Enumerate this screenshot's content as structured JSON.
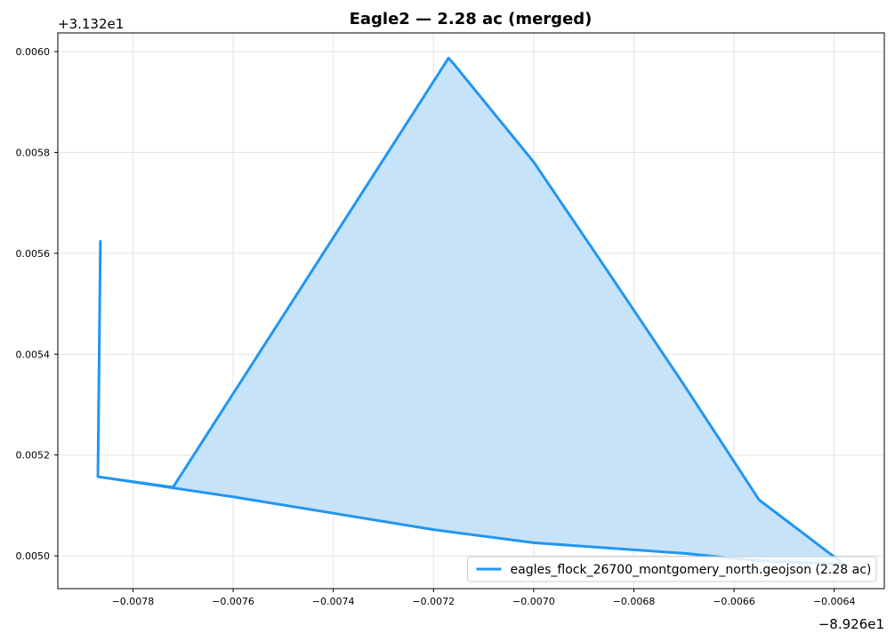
{
  "chart_data": {
    "type": "area",
    "title": "Eagle2 — 2.28 ac (merged)",
    "xlabel": "",
    "ylabel": "",
    "x_offset_label": "−8.926e1",
    "y_offset_label": "+3.132e1",
    "xlim": [
      -0.00795,
      -0.0063
    ],
    "ylim": [
      0.004935,
      0.006037
    ],
    "x_ticks": [
      -0.0078,
      -0.0076,
      -0.0074,
      -0.0072,
      -0.007,
      -0.0068,
      -0.0066,
      -0.0064
    ],
    "x_tick_labels": [
      "−0.0078",
      "−0.0076",
      "−0.0074",
      "−0.0072",
      "−0.0070",
      "−0.0068",
      "−0.0066",
      "−0.0064"
    ],
    "y_ticks": [
      0.005,
      0.0052,
      0.0054,
      0.0056,
      0.0058,
      0.006
    ],
    "y_tick_labels": [
      "0.0050",
      "0.0052",
      "0.0054",
      "0.0056",
      "0.0058",
      "0.0060"
    ],
    "grid": true,
    "legend_position": "lower-right",
    "series": [
      {
        "name": "eagles_flock_26700_montgomery_north.geojson (2.28 ac)",
        "color": "#2196f3",
        "fill_color": "#c6e3f9",
        "x": [
          -0.007865,
          -0.00787,
          -0.00772,
          -0.00717,
          -0.00716,
          -0.007,
          -0.00685,
          -0.0067,
          -0.00655,
          -0.00638,
          -0.00655,
          -0.0067,
          -0.007,
          -0.0072,
          -0.0076,
          -0.00787,
          -0.007865
        ],
        "y": [
          0.005626,
          0.005157,
          0.005136,
          0.005987,
          0.005976,
          0.005781,
          0.005561,
          0.005339,
          0.005111,
          0.004983,
          0.00499,
          0.005005,
          0.005026,
          0.005052,
          0.005117,
          0.005157,
          0.005626
        ]
      }
    ]
  }
}
